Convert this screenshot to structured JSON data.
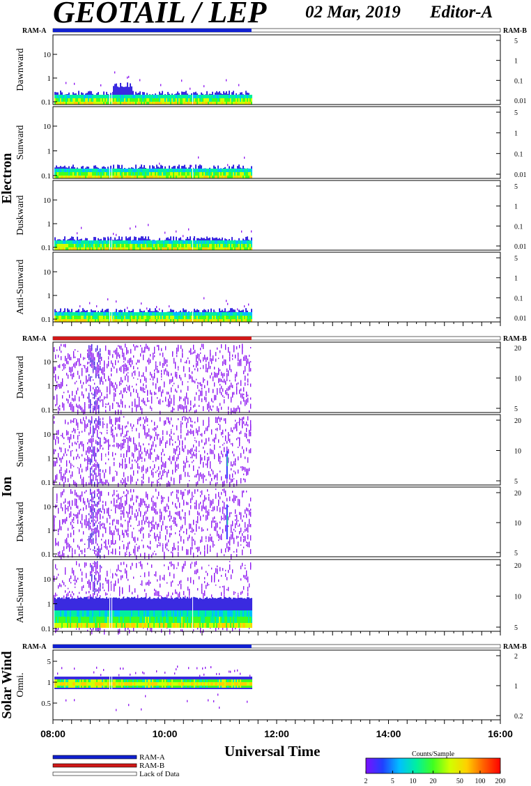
{
  "header": {
    "title": "GEOTAIL / LEP",
    "date": "02 Mar, 2019",
    "editor": "Editor-A"
  },
  "colors": {
    "ram_a": "#1020d0",
    "ram_b": "#d01818",
    "background": "#ffffff",
    "colorbar": [
      "#7a10ff",
      "#2040ff",
      "#00c0ff",
      "#00f0a0",
      "#40ff20",
      "#d0ff00",
      "#ffd000",
      "#ff6000",
      "#ff0000"
    ]
  },
  "chart_data": {
    "type": "heatmap",
    "xlabel": "Universal Time",
    "x_ticks": [
      "08:00",
      "10:00",
      "12:00",
      "14:00",
      "16:00"
    ],
    "xlim_hours": [
      8,
      16
    ],
    "data_coverage_hours": [
      8,
      11.55
    ],
    "ram_bar_labels": {
      "left": "RAM-A",
      "right": "RAM-B"
    },
    "groups": [
      {
        "name": "Electron",
        "ram_bar": "RAM-A",
        "panels": [
          {
            "direction": "Dawnward",
            "left_ticks": [
              "10",
              "1",
              "0.1"
            ],
            "right_ticks": [
              "5",
              "1",
              "0.1",
              "0.01"
            ]
          },
          {
            "direction": "Sunward",
            "left_ticks": [
              "10",
              "1",
              "0.1"
            ],
            "right_ticks": [
              "5",
              "1",
              "0.1",
              "0.01"
            ]
          },
          {
            "direction": "Duskward",
            "left_ticks": [
              "10",
              "1",
              "0.1"
            ],
            "right_ticks": [
              "5",
              "1",
              "0.1",
              "0.01"
            ]
          },
          {
            "direction": "Anti-Sunward",
            "left_ticks": [
              "10",
              "1",
              "0.1"
            ],
            "right_ticks": [
              "5",
              "1",
              "0.1",
              "0.01"
            ]
          }
        ]
      },
      {
        "name": "Ion",
        "ram_bar": "RAM-B",
        "panels": [
          {
            "direction": "Dawnward",
            "left_ticks": [
              "10",
              "1",
              "0.1"
            ],
            "right_ticks": [
              "20",
              "10",
              "5"
            ]
          },
          {
            "direction": "Sunward",
            "left_ticks": [
              "10",
              "1",
              "0.1"
            ],
            "right_ticks": [
              "20",
              "10",
              "5"
            ]
          },
          {
            "direction": "Duskward",
            "left_ticks": [
              "10",
              "1",
              "0.1"
            ],
            "right_ticks": [
              "20",
              "10",
              "5"
            ]
          },
          {
            "direction": "Anti-Sunward",
            "left_ticks": [
              "10",
              "1",
              "0.1"
            ],
            "right_ticks": [
              "20",
              "10",
              "5"
            ]
          }
        ]
      },
      {
        "name": "Solar Wind",
        "ram_bar": "RAM-A",
        "panels": [
          {
            "direction": "Omni.",
            "left_ticks": [
              "5",
              "1",
              "0.5"
            ],
            "right_ticks": [
              "2",
              "1",
              "0.2"
            ]
          }
        ]
      }
    ],
    "legend": {
      "items": [
        {
          "label": "RAM-A",
          "color": "#1020d0"
        },
        {
          "label": "RAM-B",
          "color": "#d01818"
        },
        {
          "label": "Lack of Data",
          "color": "#ffffff"
        }
      ]
    },
    "colorbar": {
      "title": "Counts/Sample",
      "ticks": [
        "2",
        "5",
        "10",
        "20",
        "50",
        "100",
        "200"
      ]
    }
  }
}
